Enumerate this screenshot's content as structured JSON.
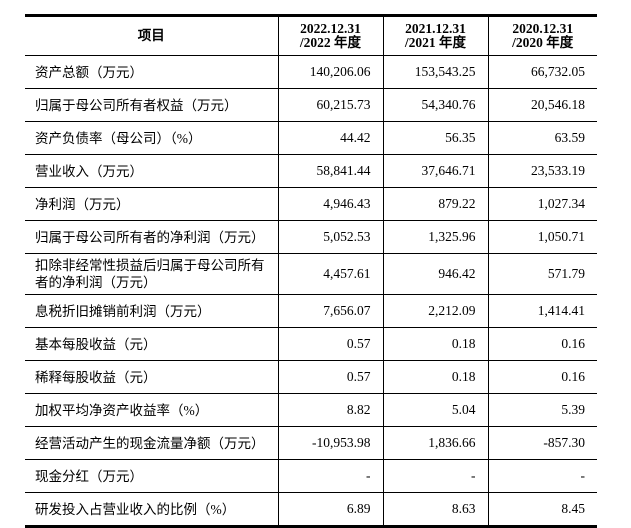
{
  "table": {
    "header": {
      "item_col": "项目",
      "periods": [
        {
          "year": "2022",
          "date_line": "2022.12.31",
          "period_line": "/2022 年度"
        },
        {
          "year": "2021",
          "date_line": "2021.12.31",
          "period_line": "/2021 年度"
        },
        {
          "year": "2020",
          "date_line": "2020.12.31",
          "period_line": "/2020 年度"
        }
      ]
    },
    "rows": [
      {
        "label": "资产总额（万元）",
        "values": [
          "140,206.06",
          "153,543.25",
          "66,732.05"
        ]
      },
      {
        "label": "归属于母公司所有者权益（万元）",
        "values": [
          "60,215.73",
          "54,340.76",
          "20,546.18"
        ]
      },
      {
        "label": "资产负债率（母公司）（%）",
        "values": [
          "44.42",
          "56.35",
          "63.59"
        ]
      },
      {
        "label": "营业收入（万元）",
        "values": [
          "58,841.44",
          "37,646.71",
          "23,533.19"
        ]
      },
      {
        "label": "净利润（万元）",
        "values": [
          "4,946.43",
          "879.22",
          "1,027.34"
        ]
      },
      {
        "label": "归属于母公司所有者的净利润（万元）",
        "values": [
          "5,052.53",
          "1,325.96",
          "1,050.71"
        ]
      },
      {
        "label": "扣除非经常性损益后归属于母公司所有者的净利润（万元）",
        "values": [
          "4,457.61",
          "946.42",
          "571.79"
        ]
      },
      {
        "label": "息税折旧摊销前利润（万元）",
        "values": [
          "7,656.07",
          "2,212.09",
          "1,414.41"
        ]
      },
      {
        "label": "基本每股收益（元）",
        "values": [
          "0.57",
          "0.18",
          "0.16"
        ]
      },
      {
        "label": "稀释每股收益（元）",
        "values": [
          "0.57",
          "0.18",
          "0.16"
        ]
      },
      {
        "label": "加权平均净资产收益率（%）",
        "values": [
          "8.82",
          "5.04",
          "5.39"
        ]
      },
      {
        "label": "经营活动产生的现金流量净额（万元）",
        "values": [
          "-10,953.98",
          "1,836.66",
          "-857.30"
        ]
      },
      {
        "label": "现金分红（万元）",
        "values": [
          "-",
          "-",
          "-"
        ]
      },
      {
        "label": "研发投入占营业收入的比例（%）",
        "values": [
          "6.89",
          "8.63",
          "8.45"
        ]
      }
    ]
  },
  "colors": {
    "text": "#000000",
    "border": "#000000",
    "background": "#ffffff"
  }
}
